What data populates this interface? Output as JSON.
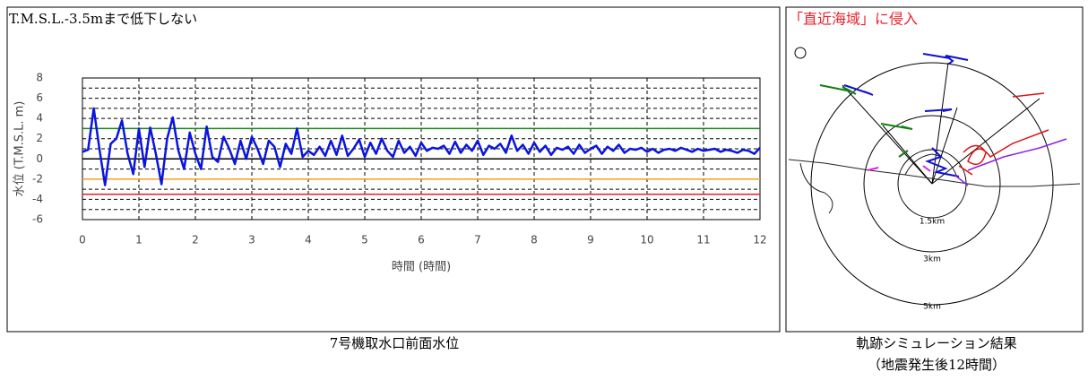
{
  "chart_data": {
    "type": "line",
    "title": "T.M.S.L.-3.5mまで低下しない",
    "xlabel": "時間 (時間)",
    "ylabel": "水位 (T.M.S.L. m)",
    "caption": "7号機取水口前面水位",
    "xlim": [
      0,
      12
    ],
    "xticks": [
      0,
      1,
      2,
      3,
      4,
      5,
      6,
      7,
      8,
      9,
      10,
      11,
      12
    ],
    "ylim": [
      -6,
      8
    ],
    "yticks": [
      -6,
      -4,
      -2,
      0,
      2,
      4,
      6,
      8
    ],
    "grid_y": [
      -6,
      -5,
      -4,
      -3,
      -2,
      -1,
      0,
      1,
      2,
      3,
      4,
      5,
      6,
      7,
      8
    ],
    "grid": true,
    "hlines": [
      {
        "value": 3,
        "color": "#1a8a1a"
      },
      {
        "value": 0,
        "color": "#000000"
      },
      {
        "value": -2,
        "color": "#f5a623"
      },
      {
        "value": -3.5,
        "color": "#e8202a"
      }
    ],
    "x": [
      0,
      0.1,
      0.2,
      0.3,
      0.4,
      0.5,
      0.6,
      0.7,
      0.8,
      0.9,
      1,
      1.1,
      1.2,
      1.3,
      1.4,
      1.5,
      1.6,
      1.7,
      1.8,
      1.9,
      2,
      2.1,
      2.2,
      2.3,
      2.4,
      2.5,
      2.6,
      2.7,
      2.8,
      2.9,
      3,
      3.1,
      3.2,
      3.3,
      3.4,
      3.5,
      3.6,
      3.7,
      3.8,
      3.9,
      4,
      4.1,
      4.2,
      4.3,
      4.4,
      4.5,
      4.6,
      4.7,
      4.8,
      4.9,
      5,
      5.1,
      5.2,
      5.3,
      5.4,
      5.5,
      5.6,
      5.7,
      5.8,
      5.9,
      6,
      6.1,
      6.2,
      6.3,
      6.4,
      6.5,
      6.6,
      6.7,
      6.8,
      6.9,
      7,
      7.1,
      7.2,
      7.3,
      7.4,
      7.5,
      7.6,
      7.7,
      7.8,
      7.9,
      8,
      8.1,
      8.2,
      8.3,
      8.4,
      8.5,
      8.6,
      8.7,
      8.8,
      8.9,
      9,
      9.1,
      9.2,
      9.3,
      9.4,
      9.5,
      9.6,
      9.7,
      9.8,
      9.9,
      10,
      10.1,
      10.2,
      10.3,
      10.4,
      10.5,
      10.6,
      10.7,
      10.8,
      10.9,
      11,
      11.1,
      11.2,
      11.3,
      11.4,
      11.5,
      11.6,
      11.7,
      11.8,
      11.9,
      12
    ],
    "series": [
      {
        "color": "#0a14e0",
        "values": [
          0.7,
          0.9,
          5.0,
          1.0,
          -2.6,
          1.5,
          2.0,
          3.8,
          0.5,
          -1.5,
          3.0,
          -0.8,
          3.1,
          0.5,
          -2.5,
          2.0,
          4.1,
          0.8,
          -1.0,
          2.6,
          0.5,
          -1.0,
          3.2,
          0.2,
          -0.3,
          2.2,
          1.0,
          -0.5,
          1.8,
          0.0,
          2.2,
          1.0,
          -0.5,
          1.8,
          1.2,
          -0.8,
          1.5,
          0.5,
          3.0,
          0.2,
          0.8,
          0.4,
          1.2,
          0.3,
          1.8,
          0.4,
          2.3,
          0.3,
          1.0,
          1.9,
          0.2,
          1.6,
          0.5,
          2.0,
          0.8,
          0.2,
          1.8,
          0.6,
          1.2,
          0.3,
          1.6,
          0.8,
          1.1,
          1.0,
          1.3,
          0.5,
          1.7,
          0.6,
          1.4,
          0.8,
          1.8,
          0.4,
          1.3,
          1.0,
          1.5,
          0.6,
          2.3,
          0.8,
          1.4,
          0.5,
          1.6,
          0.7,
          1.3,
          0.4,
          1.1,
          0.9,
          1.2,
          0.5,
          1.4,
          0.6,
          1.0,
          1.3,
          0.5,
          1.2,
          0.8,
          1.4,
          0.6,
          1.0,
          0.9,
          1.1,
          0.7,
          1.0,
          0.6,
          0.9,
          1.0,
          0.8,
          1.1,
          0.9,
          0.7,
          1.0,
          0.8,
          0.9,
          1.0,
          0.7,
          0.9,
          0.8,
          0.6,
          0.9,
          0.8,
          0.5,
          1.1
        ]
      }
    ]
  },
  "trajectory": {
    "title": "「直近海域」に侵入",
    "ring_labels": [
      "1.5km",
      "3km",
      "5km"
    ],
    "caption": [
      "軌跡シミュレーション結果",
      "（地震発生後12時間）"
    ]
  }
}
